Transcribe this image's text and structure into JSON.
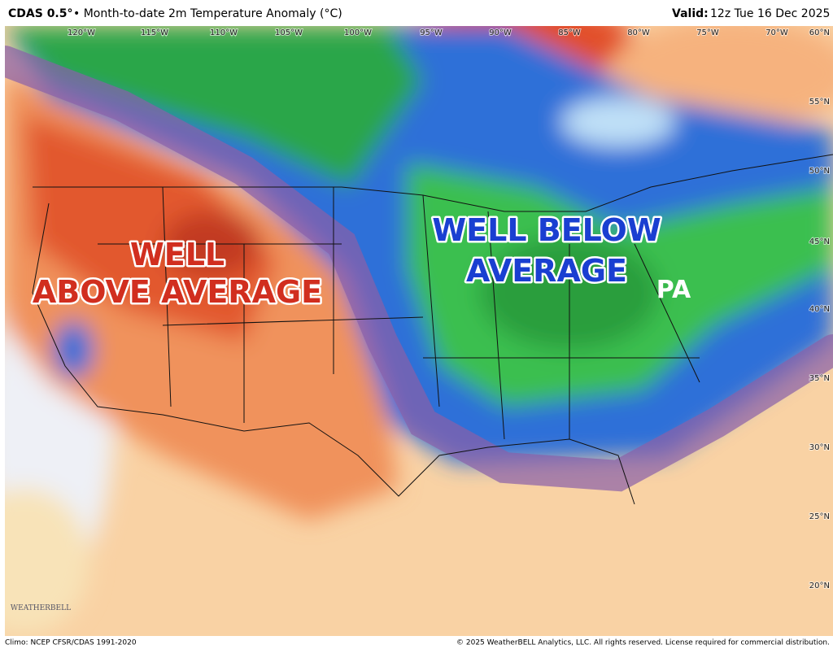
{
  "header": {
    "product": "CDAS 0.5°",
    "description": "• Month-to-date 2m Temperature Anomaly (°C)",
    "valid_label": "Valid:",
    "valid_time": "12z Tue 16 Dec 2025"
  },
  "map": {
    "longitude_labels": [
      "120°W",
      "115°W",
      "110°W",
      "105°W",
      "100°W",
      "95°W",
      "90°W",
      "85°W",
      "80°W",
      "75°W",
      "70°W"
    ],
    "latitude_labels": [
      "60°N",
      "55°N",
      "50°N",
      "45°N",
      "40°N",
      "35°N",
      "30°N",
      "25°N",
      "20°N"
    ],
    "annotations": {
      "west_line1": "WELL",
      "west_line2": "ABOVE AVERAGE",
      "east_line1": "WELL BELOW",
      "east_line2": "AVERAGE",
      "state": "PA"
    },
    "logo": "WEATHERBELL"
  },
  "footer": {
    "climo": "Climo: NCEP CFSR/CDAS 1991-2020",
    "copyright": "© 2025 WeatherBELL Analytics, LLC. All rights reserved. License required for commercial distribution."
  }
}
